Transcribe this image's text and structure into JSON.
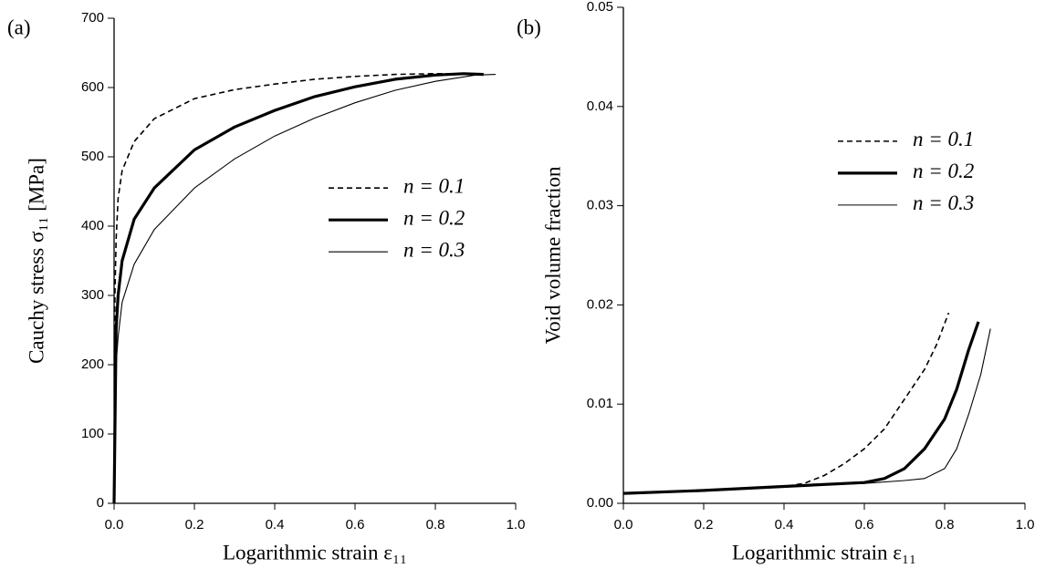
{
  "chart_data": [
    {
      "type": "line",
      "panel_label": "(a)",
      "x_label": "Logarithmic strain ε₁₁",
      "y_label": "Cauchy stress σ₁₁ [MPa]",
      "xlim": [
        0,
        1
      ],
      "ylim": [
        0,
        700
      ],
      "xticks": [
        {
          "value": 0,
          "label": "0.0"
        },
        0.2,
        0.4,
        0.6,
        0.8,
        {
          "value": 1,
          "label": "1.0"
        }
      ],
      "yticks": [
        0,
        100,
        200,
        300,
        400,
        500,
        600,
        700
      ],
      "legend": "center right",
      "series": [
        {
          "name": "n = 0.1",
          "color": "#000000",
          "linestyle": "dashed",
          "line_width": 1.6,
          "x": [
            0,
            0.002,
            0.005,
            0.01,
            0.02,
            0.05,
            0.1,
            0.2,
            0.3,
            0.4,
            0.5,
            0.6,
            0.7,
            0.8,
            0.85
          ],
          "values": [
            0,
            300,
            380,
            440,
            480,
            522,
            555,
            584,
            597,
            605,
            612,
            616,
            619,
            620,
            620
          ]
        },
        {
          "name": "n = 0.2",
          "color": "#000000",
          "linestyle": "solid",
          "line_width": 3.2,
          "x": [
            0,
            0.005,
            0.01,
            0.02,
            0.05,
            0.1,
            0.2,
            0.3,
            0.4,
            0.5,
            0.6,
            0.7,
            0.8,
            0.87,
            0.92
          ],
          "values": [
            0,
            250,
            300,
            350,
            410,
            455,
            510,
            543,
            567,
            587,
            601,
            612,
            618,
            620,
            619
          ]
        },
        {
          "name": "n = 0.3",
          "color": "#000000",
          "linestyle": "solid",
          "line_width": 1.1,
          "x": [
            0,
            0.005,
            0.01,
            0.02,
            0.05,
            0.1,
            0.2,
            0.3,
            0.4,
            0.5,
            0.6,
            0.7,
            0.8,
            0.9,
            0.95
          ],
          "values": [
            0,
            200,
            240,
            290,
            345,
            395,
            455,
            497,
            530,
            556,
            578,
            596,
            609,
            618,
            619
          ]
        }
      ]
    },
    {
      "type": "line",
      "panel_label": "(b)",
      "x_label": "Logarithmic strain ε₁₁",
      "y_label": "Void volume fraction",
      "xlim": [
        0,
        1
      ],
      "ylim": [
        0,
        0.05
      ],
      "xticks": [
        {
          "value": 0,
          "label": "0.0"
        },
        0.2,
        0.4,
        0.6,
        0.8,
        {
          "value": 1,
          "label": "1.0"
        }
      ],
      "yticks": [
        {
          "value": 0,
          "label": "0.00"
        },
        {
          "value": 0.01,
          "label": "0.01"
        },
        {
          "value": 0.02,
          "label": "0.02"
        },
        {
          "value": 0.03,
          "label": "0.03"
        },
        {
          "value": 0.04,
          "label": "0.04"
        },
        {
          "value": 0.05,
          "label": "0.05"
        }
      ],
      "legend": "upper right",
      "series": [
        {
          "name": "n = 0.1",
          "color": "#000000",
          "linestyle": "dashed",
          "line_width": 1.6,
          "x": [
            0,
            0.2,
            0.4,
            0.45,
            0.5,
            0.55,
            0.6,
            0.65,
            0.7,
            0.75,
            0.78,
            0.81
          ],
          "values": [
            0.001,
            0.0013,
            0.0017,
            0.002,
            0.0028,
            0.004,
            0.0055,
            0.0075,
            0.0105,
            0.0135,
            0.016,
            0.0192
          ]
        },
        {
          "name": "n = 0.2",
          "color": "#000000",
          "linestyle": "solid",
          "line_width": 3.2,
          "x": [
            0,
            0.2,
            0.4,
            0.6,
            0.65,
            0.7,
            0.75,
            0.8,
            0.83,
            0.86,
            0.884
          ],
          "values": [
            0.001,
            0.0013,
            0.0017,
            0.0021,
            0.0025,
            0.0035,
            0.0055,
            0.0085,
            0.0115,
            0.0155,
            0.0183
          ]
        },
        {
          "name": "n = 0.3",
          "color": "#000000",
          "linestyle": "solid",
          "line_width": 1.1,
          "x": [
            0,
            0.2,
            0.4,
            0.6,
            0.7,
            0.75,
            0.8,
            0.83,
            0.86,
            0.89,
            0.914
          ],
          "values": [
            0.001,
            0.0013,
            0.0017,
            0.002,
            0.0023,
            0.0025,
            0.0035,
            0.0055,
            0.009,
            0.013,
            0.0176
          ]
        }
      ]
    }
  ]
}
